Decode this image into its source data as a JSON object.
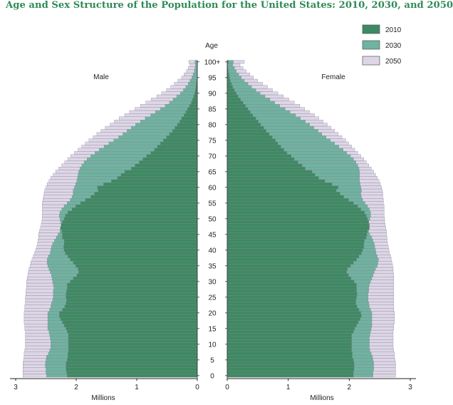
{
  "chart_data": {
    "type": "bar",
    "subtype": "population-pyramid",
    "title": "Age and Sex Structure of the Population for the United States: 2010, 2030, and 2050",
    "age_axis_label": "Age",
    "age_ticks": [
      "0",
      "5",
      "10",
      "15",
      "20",
      "25",
      "30",
      "35",
      "40",
      "45",
      "50",
      "55",
      "60",
      "65",
      "70",
      "75",
      "80",
      "85",
      "90",
      "95",
      "100+"
    ],
    "male_label": "Male",
    "female_label": "Female",
    "xlabel": "Millions",
    "x_ticks_male": [
      "3",
      "2",
      "1",
      "0"
    ],
    "x_ticks_female": [
      "0",
      "1",
      "2",
      "3"
    ],
    "xlim": [
      0,
      3
    ],
    "legend": [
      {
        "name": "2010",
        "color": "#3d8a62"
      },
      {
        "name": "2030",
        "color": "#6fb3a0"
      },
      {
        "name": "2050",
        "color": "#ddd6e6"
      }
    ],
    "bar_stroke": "#8a8296",
    "age_group_note": "single years of age 0 to 100+, values in millions",
    "series": [
      {
        "name": "2010",
        "sex": "male",
        "values": [
          2.15,
          2.16,
          2.17,
          2.17,
          2.17,
          2.15,
          2.14,
          2.14,
          2.13,
          2.13,
          2.13,
          2.13,
          2.13,
          2.13,
          2.15,
          2.17,
          2.2,
          2.23,
          2.26,
          2.28,
          2.28,
          2.23,
          2.19,
          2.17,
          2.16,
          2.17,
          2.17,
          2.16,
          2.15,
          2.15,
          2.1,
          2.05,
          1.99,
          1.96,
          1.97,
          2.01,
          2.05,
          2.1,
          2.14,
          2.18,
          2.2,
          2.21,
          2.2,
          2.2,
          2.23,
          2.23,
          2.24,
          2.26,
          2.25,
          2.23,
          2.2,
          2.18,
          2.14,
          2.07,
          2.01,
          1.93,
          1.85,
          1.76,
          1.7,
          1.64,
          1.65,
          1.55,
          1.42,
          1.32,
          1.26,
          1.2,
          1.09,
          1.03,
          0.96,
          0.9,
          0.84,
          0.77,
          0.71,
          0.66,
          0.61,
          0.56,
          0.51,
          0.46,
          0.41,
          0.37,
          0.33,
          0.29,
          0.26,
          0.22,
          0.19,
          0.16,
          0.13,
          0.1,
          0.08,
          0.06,
          0.045,
          0.034,
          0.025,
          0.018,
          0.012,
          0.008,
          0.005,
          0.003,
          0.002,
          0.001,
          0.002
        ]
      },
      {
        "name": "2030",
        "sex": "male",
        "values": [
          2.49,
          2.5,
          2.5,
          2.51,
          2.51,
          2.5,
          2.49,
          2.46,
          2.44,
          2.42,
          2.42,
          2.42,
          2.43,
          2.44,
          2.45,
          2.47,
          2.47,
          2.47,
          2.47,
          2.47,
          2.47,
          2.44,
          2.42,
          2.41,
          2.39,
          2.38,
          2.38,
          2.38,
          2.37,
          2.38,
          2.39,
          2.4,
          2.41,
          2.43,
          2.45,
          2.47,
          2.48,
          2.48,
          2.46,
          2.43,
          2.42,
          2.41,
          2.39,
          2.36,
          2.33,
          2.3,
          2.27,
          2.26,
          2.25,
          2.26,
          2.27,
          2.28,
          2.27,
          2.24,
          2.2,
          2.15,
          2.1,
          2.07,
          2.05,
          2.05,
          2.03,
          2.01,
          1.99,
          1.98,
          1.97,
          1.96,
          1.94,
          1.91,
          1.87,
          1.82,
          1.76,
          1.69,
          1.62,
          1.54,
          1.46,
          1.38,
          1.3,
          1.23,
          1.16,
          1.09,
          1.02,
          0.94,
          0.86,
          0.77,
          0.69,
          0.61,
          0.53,
          0.46,
          0.4,
          0.34,
          0.28,
          0.23,
          0.19,
          0.15,
          0.12,
          0.09,
          0.07,
          0.05,
          0.04,
          0.03,
          0.04
        ]
      },
      {
        "name": "2050",
        "sex": "male",
        "values": [
          2.88,
          2.88,
          2.88,
          2.88,
          2.88,
          2.87,
          2.86,
          2.86,
          2.85,
          2.84,
          2.84,
          2.84,
          2.84,
          2.84,
          2.84,
          2.85,
          2.85,
          2.86,
          2.86,
          2.86,
          2.86,
          2.85,
          2.85,
          2.84,
          2.84,
          2.84,
          2.83,
          2.83,
          2.82,
          2.82,
          2.82,
          2.81,
          2.8,
          2.79,
          2.78,
          2.76,
          2.75,
          2.73,
          2.71,
          2.69,
          2.67,
          2.65,
          2.64,
          2.63,
          2.62,
          2.62,
          2.61,
          2.59,
          2.58,
          2.57,
          2.56,
          2.56,
          2.56,
          2.56,
          2.56,
          2.56,
          2.55,
          2.54,
          2.53,
          2.52,
          2.5,
          2.48,
          2.45,
          2.42,
          2.38,
          2.34,
          2.29,
          2.24,
          2.19,
          2.14,
          2.09,
          2.03,
          1.97,
          1.91,
          1.85,
          1.79,
          1.72,
          1.66,
          1.59,
          1.52,
          1.44,
          1.37,
          1.29,
          1.2,
          1.12,
          1.03,
          0.94,
          0.85,
          0.76,
          0.67,
          0.59,
          0.51,
          0.44,
          0.38,
          0.32,
          0.26,
          0.22,
          0.18,
          0.15,
          0.12,
          0.14
        ]
      },
      {
        "name": "2010",
        "sex": "female",
        "values": [
          2.07,
          2.07,
          2.08,
          2.08,
          2.08,
          2.07,
          2.05,
          2.05,
          2.04,
          2.04,
          2.04,
          2.04,
          2.04,
          2.04,
          2.07,
          2.09,
          2.12,
          2.15,
          2.18,
          2.2,
          2.19,
          2.16,
          2.13,
          2.11,
          2.11,
          2.12,
          2.13,
          2.12,
          2.12,
          2.12,
          2.08,
          2.03,
          1.99,
          1.96,
          1.97,
          2.02,
          2.07,
          2.12,
          2.16,
          2.2,
          2.22,
          2.24,
          2.24,
          2.25,
          2.28,
          2.29,
          2.3,
          2.33,
          2.33,
          2.32,
          2.3,
          2.28,
          2.25,
          2.19,
          2.14,
          2.07,
          1.99,
          1.91,
          1.85,
          1.79,
          1.82,
          1.72,
          1.6,
          1.5,
          1.44,
          1.39,
          1.28,
          1.23,
          1.16,
          1.1,
          1.05,
          0.98,
          0.93,
          0.88,
          0.83,
          0.79,
          0.74,
          0.69,
          0.64,
          0.6,
          0.55,
          0.51,
          0.47,
          0.42,
          0.38,
          0.34,
          0.3,
          0.26,
          0.22,
          0.18,
          0.15,
          0.12,
          0.09,
          0.07,
          0.05,
          0.04,
          0.03,
          0.02,
          0.015,
          0.01,
          0.02
        ]
      },
      {
        "name": "2030",
        "sex": "female",
        "values": [
          2.39,
          2.39,
          2.4,
          2.4,
          2.4,
          2.39,
          2.38,
          2.36,
          2.34,
          2.33,
          2.33,
          2.33,
          2.33,
          2.34,
          2.35,
          2.36,
          2.37,
          2.37,
          2.37,
          2.37,
          2.37,
          2.35,
          2.33,
          2.32,
          2.31,
          2.31,
          2.31,
          2.32,
          2.32,
          2.33,
          2.35,
          2.37,
          2.39,
          2.41,
          2.43,
          2.46,
          2.47,
          2.48,
          2.46,
          2.44,
          2.43,
          2.42,
          2.41,
          2.39,
          2.37,
          2.34,
          2.32,
          2.31,
          2.31,
          2.32,
          2.34,
          2.35,
          2.35,
          2.33,
          2.3,
          2.26,
          2.22,
          2.2,
          2.19,
          2.2,
          2.19,
          2.18,
          2.17,
          2.17,
          2.17,
          2.17,
          2.16,
          2.14,
          2.11,
          2.07,
          2.02,
          1.96,
          1.9,
          1.83,
          1.76,
          1.69,
          1.62,
          1.55,
          1.49,
          1.42,
          1.35,
          1.28,
          1.2,
          1.12,
          1.03,
          0.95,
          0.86,
          0.78,
          0.7,
          0.62,
          0.54,
          0.47,
          0.4,
          0.34,
          0.28,
          0.23,
          0.19,
          0.15,
          0.12,
          0.09,
          0.1
        ]
      },
      {
        "name": "2050",
        "sex": "female",
        "values": [
          2.76,
          2.76,
          2.76,
          2.76,
          2.76,
          2.75,
          2.74,
          2.74,
          2.73,
          2.72,
          2.72,
          2.72,
          2.72,
          2.72,
          2.72,
          2.73,
          2.73,
          2.74,
          2.74,
          2.74,
          2.74,
          2.73,
          2.73,
          2.73,
          2.73,
          2.73,
          2.73,
          2.73,
          2.73,
          2.73,
          2.73,
          2.73,
          2.73,
          2.72,
          2.72,
          2.71,
          2.7,
          2.69,
          2.68,
          2.66,
          2.65,
          2.64,
          2.63,
          2.62,
          2.62,
          2.61,
          2.61,
          2.6,
          2.59,
          2.58,
          2.58,
          2.57,
          2.57,
          2.57,
          2.57,
          2.56,
          2.56,
          2.55,
          2.55,
          2.54,
          2.53,
          2.51,
          2.49,
          2.46,
          2.43,
          2.4,
          2.36,
          2.32,
          2.28,
          2.24,
          2.19,
          2.14,
          2.09,
          2.04,
          1.99,
          1.94,
          1.88,
          1.82,
          1.76,
          1.7,
          1.64,
          1.57,
          1.5,
          1.43,
          1.35,
          1.27,
          1.19,
          1.1,
          1.01,
          0.92,
          0.83,
          0.74,
          0.66,
          0.58,
          0.5,
          0.43,
          0.37,
          0.31,
          0.26,
          0.21,
          0.28
        ]
      }
    ]
  }
}
